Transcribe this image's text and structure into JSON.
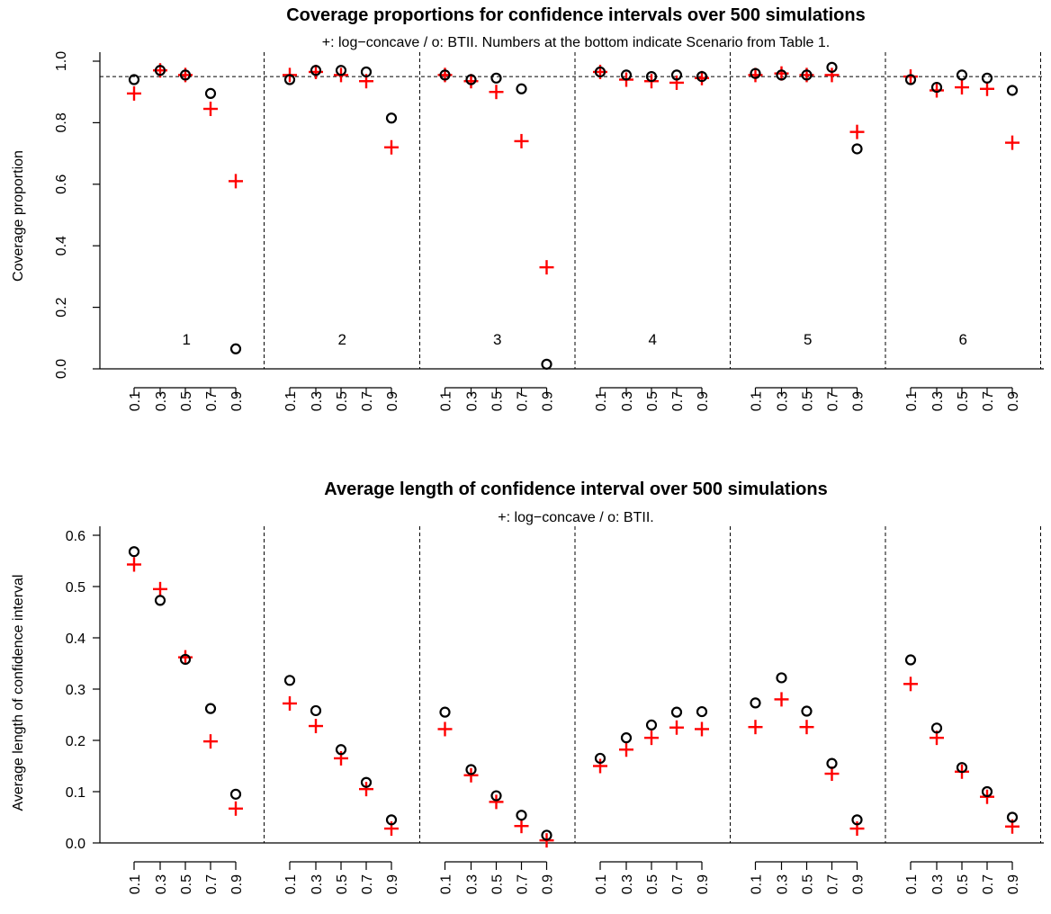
{
  "chart_data": [
    {
      "type": "scatter",
      "title": "Coverage proportions for confidence intervals over 500 simulations",
      "subtitle": "+: log−concave / o: BTII. Numbers at the bottom indicate Scenario from Table 1.",
      "xlabel": "",
      "ylabel": "Coverage proportion",
      "ylim": [
        0,
        1
      ],
      "y_ticks": [
        "0.0",
        "0.2",
        "0.4",
        "0.6",
        "0.8",
        "1.0"
      ],
      "reference_line": 0.95,
      "x_tick_labels": [
        "0.1",
        "0.3",
        "0.5",
        "0.7",
        "0.9"
      ],
      "scenario_labels": [
        "1",
        "2",
        "3",
        "4",
        "5",
        "6"
      ],
      "series": [
        {
          "symbol": "+",
          "color": "#ff0000",
          "scenarios": [
            [
              0.895,
              0.97,
              0.955,
              0.845,
              0.61
            ],
            [
              0.955,
              0.965,
              0.955,
              0.935,
              0.72
            ],
            [
              0.955,
              0.935,
              0.9,
              0.74,
              0.33
            ],
            [
              0.965,
              0.94,
              0.935,
              0.93,
              0.945
            ],
            [
              0.955,
              0.96,
              0.955,
              0.955,
              0.77
            ],
            [
              0.95,
              0.905,
              0.915,
              0.91,
              0.735
            ]
          ]
        },
        {
          "symbol": "o",
          "color": "#000000",
          "scenarios": [
            [
              0.94,
              0.97,
              0.955,
              0.895,
              0.065
            ],
            [
              0.94,
              0.97,
              0.97,
              0.965,
              0.815
            ],
            [
              0.955,
              0.94,
              0.945,
              0.91,
              0.015
            ],
            [
              0.965,
              0.955,
              0.95,
              0.955,
              0.95
            ],
            [
              0.96,
              0.955,
              0.955,
              0.98,
              0.715
            ],
            [
              0.94,
              0.915,
              0.955,
              0.945,
              0.905
            ]
          ]
        }
      ]
    },
    {
      "type": "scatter",
      "title": "Average length of confidence interval over 500 simulations",
      "subtitle": "+: log−concave / o: BTII.",
      "xlabel": "",
      "ylabel": "Average length of confidence interval",
      "ylim": [
        0,
        0.6
      ],
      "y_ticks": [
        "0.0",
        "0.1",
        "0.2",
        "0.3",
        "0.4",
        "0.5",
        "0.6"
      ],
      "x_tick_labels": [
        "0.1",
        "0.3",
        "0.5",
        "0.7",
        "0.9"
      ],
      "series": [
        {
          "symbol": "+",
          "color": "#ff0000",
          "scenarios": [
            [
              0.543,
              0.495,
              0.362,
              0.198,
              0.067
            ],
            [
              0.272,
              0.228,
              0.165,
              0.105,
              0.028
            ],
            [
              0.222,
              0.132,
              0.08,
              0.033,
              0.005
            ],
            [
              0.15,
              0.182,
              0.205,
              0.225,
              0.222
            ],
            [
              0.226,
              0.28,
              0.226,
              0.135,
              0.028
            ],
            [
              0.31,
              0.205,
              0.139,
              0.09,
              0.032
            ]
          ]
        },
        {
          "symbol": "o",
          "color": "#000000",
          "scenarios": [
            [
              0.568,
              0.473,
              0.358,
              0.262,
              0.095
            ],
            [
              0.317,
              0.258,
              0.182,
              0.118,
              0.045
            ],
            [
              0.255,
              0.143,
              0.092,
              0.054,
              0.015
            ],
            [
              0.165,
              0.205,
              0.23,
              0.255,
              0.256
            ],
            [
              0.273,
              0.322,
              0.257,
              0.155,
              0.045
            ],
            [
              0.357,
              0.224,
              0.147,
              0.1,
              0.05
            ]
          ]
        }
      ]
    }
  ]
}
